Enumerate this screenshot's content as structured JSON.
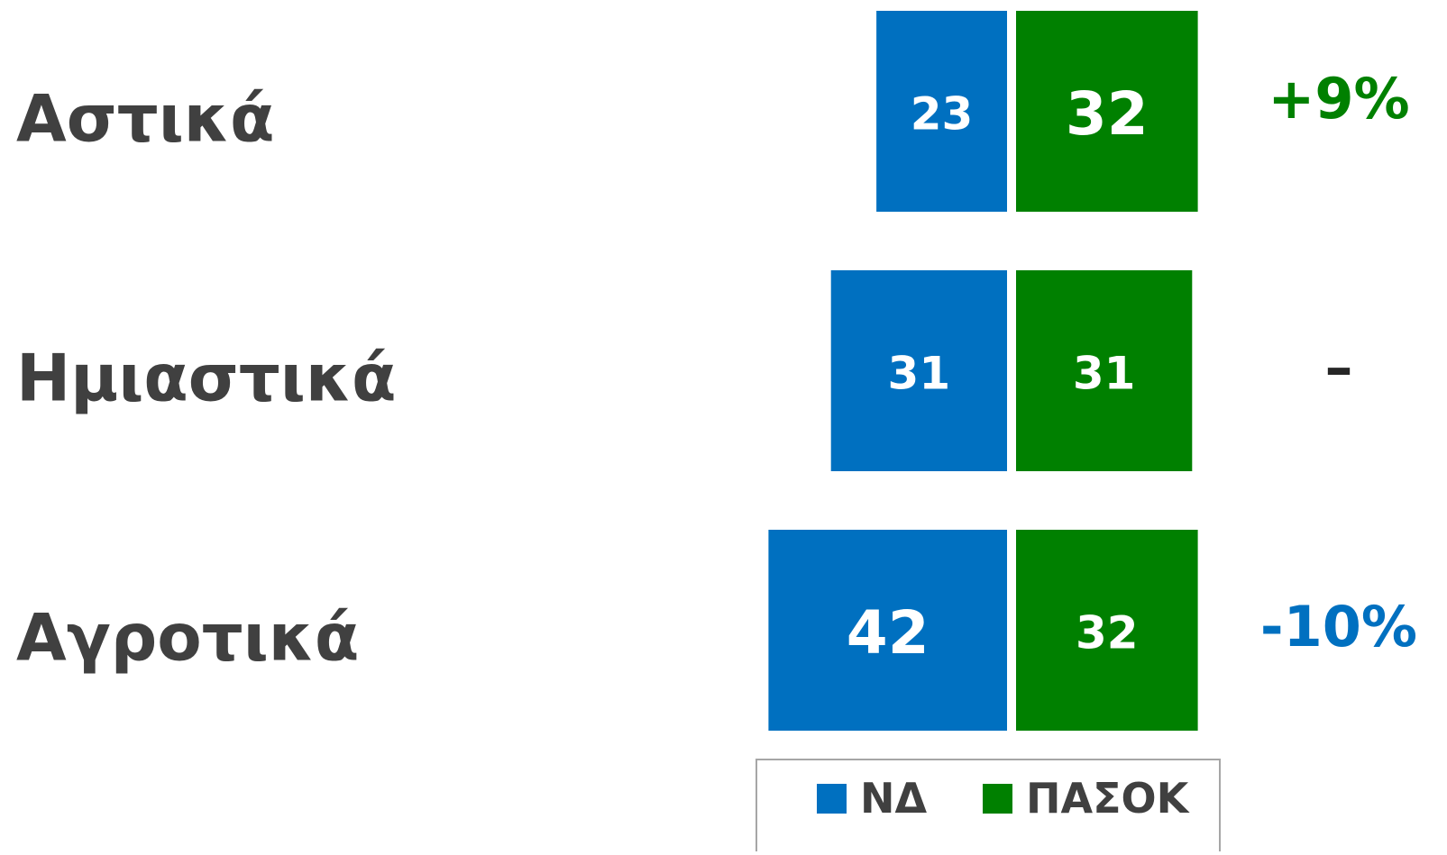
{
  "chart_data": {
    "type": "bar",
    "orientation": "diverging",
    "categories": [
      "Αστικά",
      "Ημιαστικά",
      "Αγροτικά"
    ],
    "series": [
      {
        "name": "ΝΔ",
        "color": "#0070c0",
        "values": [
          23,
          31,
          42
        ]
      },
      {
        "name": "ΠΑΣΟΚ",
        "color": "#008000",
        "values": [
          32,
          31,
          32
        ]
      }
    ],
    "annotations": [
      "+9%",
      "–",
      "-10%"
    ],
    "annotation_colors": [
      "#008000",
      "#262626",
      "#0070c0"
    ],
    "legend": "bottom"
  }
}
